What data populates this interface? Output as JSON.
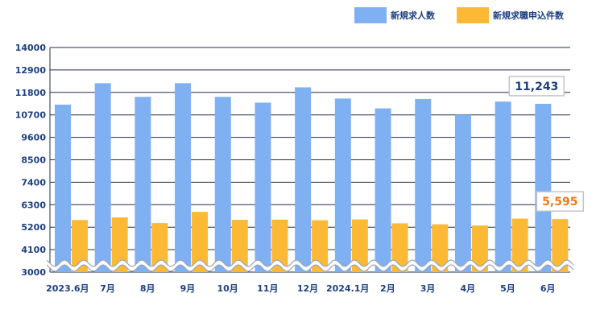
{
  "chart_data": {
    "type": "bar",
    "categories": [
      "2023.6月",
      "7月",
      "8月",
      "9月",
      "10月",
      "11月",
      "12月",
      "2024.1月",
      "2月",
      "3月",
      "4月",
      "5月",
      "6月"
    ],
    "series": [
      {
        "name": "新規求人数",
        "color": "#7fb0f2",
        "values": [
          11200,
          12250,
          11580,
          12250,
          11580,
          11300,
          12050,
          11500,
          11020,
          11480,
          10700,
          11350,
          11243
        ]
      },
      {
        "name": "新規求職申込件数",
        "color": "#fbb934",
        "values": [
          5550,
          5680,
          5400,
          5950,
          5560,
          5570,
          5540,
          5580,
          5390,
          5340,
          5280,
          5620,
          5595
        ]
      }
    ],
    "yticks": [
      "14000",
      "12900",
      "11800",
      "10700",
      "9600",
      "8500",
      "7400",
      "6300",
      "5200",
      "4100",
      "3000"
    ],
    "ylim": [
      3000,
      14000
    ],
    "axis_break": true,
    "annotations": [
      {
        "series": 0,
        "index": 12,
        "text": "11,243",
        "color": "#1b3f80",
        "border": "#c4c4c4"
      },
      {
        "series": 1,
        "index": 12,
        "text": "5,595",
        "color": "#f07a1c",
        "border": "#c4c4c4"
      }
    ],
    "grid": true,
    "legend_position": "top-right"
  }
}
